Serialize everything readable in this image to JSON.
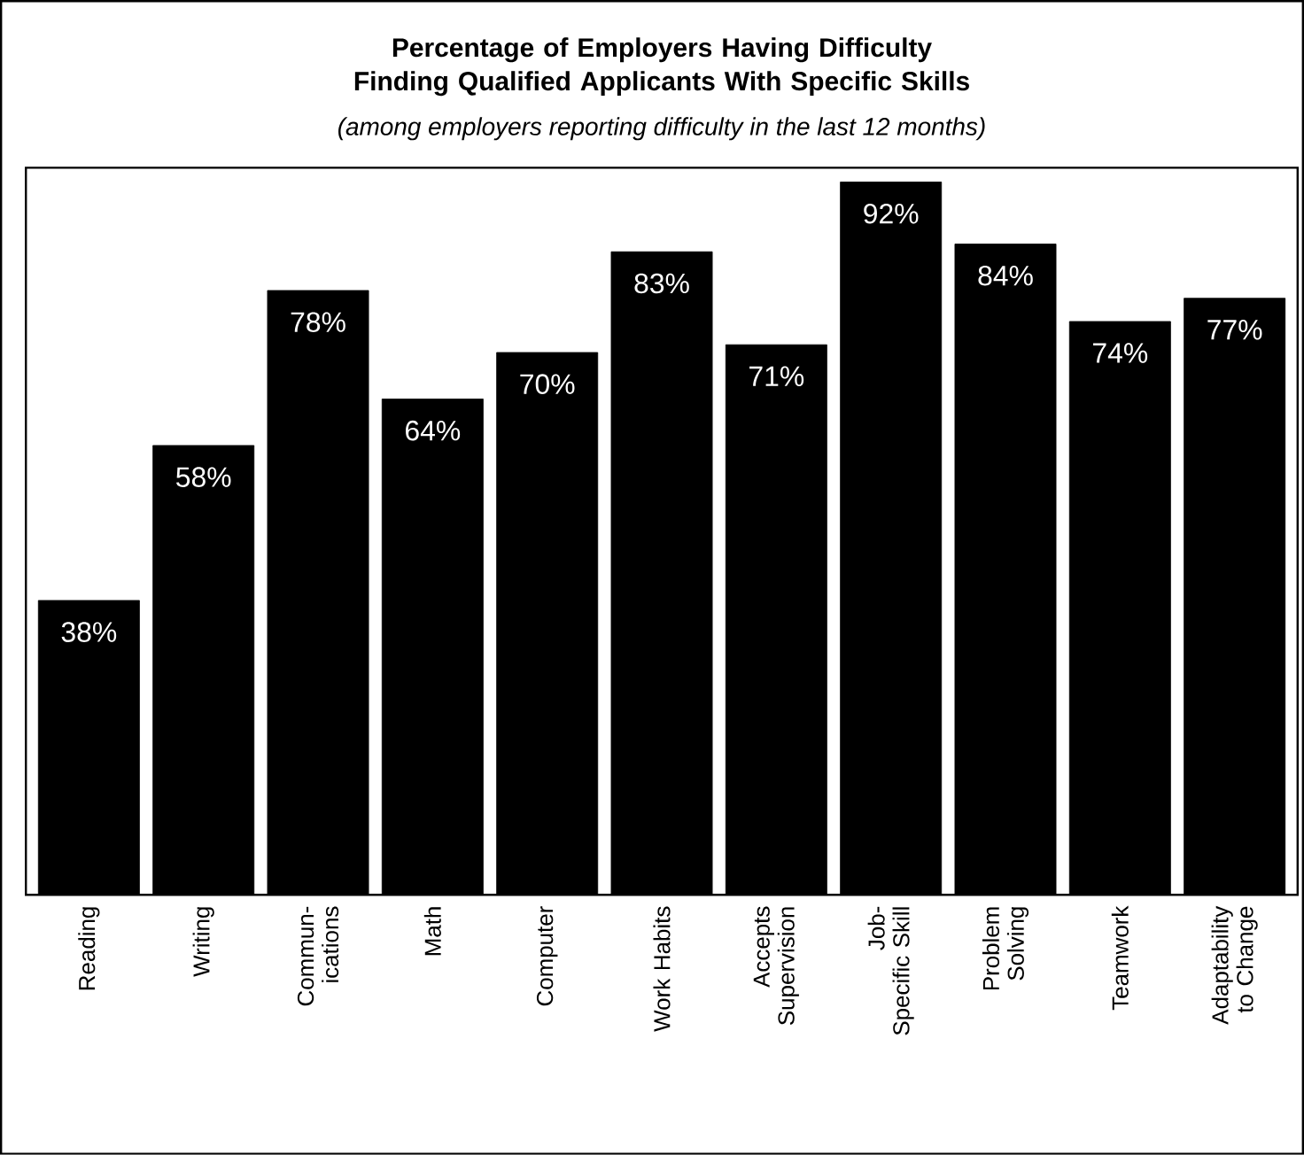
{
  "chart_data": {
    "type": "bar",
    "title": "Percentage of Employers Having Difficulty Finding Qualified Applicants With Specific Skills",
    "subtitle": "(among employers reporting difficulty in the last 12 months)",
    "categories": [
      "Reading",
      "Writing",
      "Commun- ications",
      "Math",
      "Computer",
      "Work Habits",
      "Accepts Supervision",
      "Job-Specific Skill",
      "Problem Solving",
      "Teamwork",
      "Adaptability to Change"
    ],
    "values": [
      38,
      58,
      78,
      64,
      70,
      83,
      71,
      92,
      84,
      74,
      77
    ],
    "value_labels": [
      "38%",
      "58%",
      "78%",
      "64%",
      "70%",
      "83%",
      "71%",
      "92%",
      "84%",
      "74%",
      "77%"
    ],
    "color": "#000000"
  }
}
